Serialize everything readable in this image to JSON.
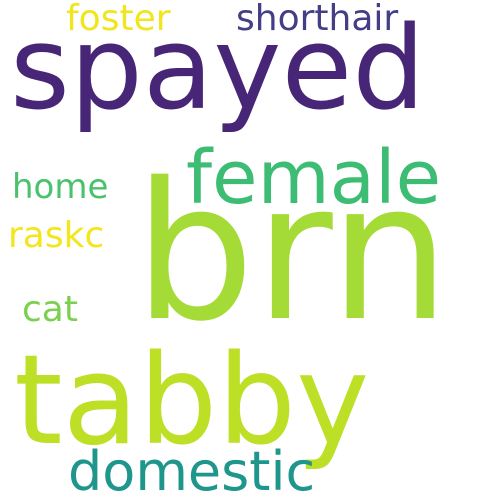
{
  "words": [
    {
      "text": "brn",
      "color": "#a5db36"
    },
    {
      "text": "tabby",
      "color": "#bddf26"
    },
    {
      "text": "spayed",
      "color": "#482677"
    },
    {
      "text": "female",
      "color": "#3dbc74"
    },
    {
      "text": "domestic",
      "color": "#1f968b"
    },
    {
      "text": "shorthair",
      "color": "#433e85"
    },
    {
      "text": "foster",
      "color": "#f1e51d"
    },
    {
      "text": "home",
      "color": "#4ac16d"
    },
    {
      "text": "raskc",
      "color": "#f4e61e"
    },
    {
      "text": "cat",
      "color": "#7ad151"
    }
  ]
}
